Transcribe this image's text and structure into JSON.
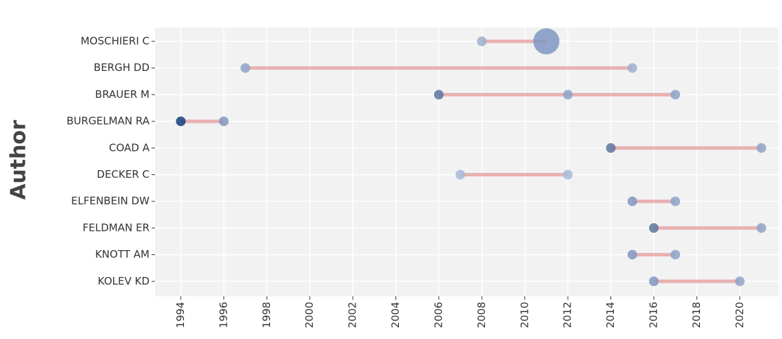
{
  "chart_data": {
    "type": "timeline",
    "y_label": "Author",
    "categories": [
      "MOSCHIERI C",
      "BERGH DD",
      "BRAUER M",
      "BURGELMAN RA",
      "COAD A",
      "DECKER C",
      "ELFENBEIN DW",
      "FELDMAN ER",
      "KNOTT AM",
      "KOLEV KD"
    ],
    "rows": [
      {
        "points": [
          {
            "year": 2008,
            "articles": 1,
            "color": "#9fb0cf"
          },
          {
            "year": 2011,
            "articles": 5,
            "color": "#7f98c2"
          }
        ]
      },
      {
        "points": [
          {
            "year": 1997,
            "articles": 1,
            "color": "#8fa3c8"
          },
          {
            "year": 2015,
            "articles": 1,
            "color": "#9fb0cf"
          }
        ]
      },
      {
        "points": [
          {
            "year": 2006,
            "articles": 1,
            "color": "#5e76a0"
          },
          {
            "year": 2012,
            "articles": 1,
            "color": "#8fa3c8"
          },
          {
            "year": 2017,
            "articles": 1,
            "color": "#8fa3c8"
          }
        ]
      },
      {
        "points": [
          {
            "year": 1994,
            "articles": 1,
            "color": "#163d7a"
          },
          {
            "year": 1996,
            "articles": 1,
            "color": "#8297bf"
          }
        ]
      },
      {
        "points": [
          {
            "year": 2014,
            "articles": 1,
            "color": "#5e76a0"
          },
          {
            "year": 2021,
            "articles": 1,
            "color": "#8fa3c8"
          }
        ]
      },
      {
        "points": [
          {
            "year": 2007,
            "articles": 1,
            "color": "#a9badb"
          },
          {
            "year": 2012,
            "articles": 1,
            "color": "#a9badb"
          }
        ]
      },
      {
        "points": [
          {
            "year": 2015,
            "articles": 1,
            "color": "#8297bf"
          },
          {
            "year": 2017,
            "articles": 1,
            "color": "#8fa3c8"
          }
        ]
      },
      {
        "points": [
          {
            "year": 2016,
            "articles": 1,
            "color": "#5e76a0"
          },
          {
            "year": 2021,
            "articles": 1,
            "color": "#8fa3c8"
          }
        ]
      },
      {
        "points": [
          {
            "year": 2015,
            "articles": 1,
            "color": "#8297bf"
          },
          {
            "year": 2017,
            "articles": 1,
            "color": "#8fa3c8"
          }
        ]
      },
      {
        "points": [
          {
            "year": 2016,
            "articles": 1,
            "color": "#8297bf"
          },
          {
            "year": 2020,
            "articles": 1,
            "color": "#8fa3c8"
          }
        ]
      }
    ],
    "line_color": "#e39a9a",
    "xlim": [
      1992.8,
      2021.8
    ],
    "xticks": [
      1994,
      1996,
      1998,
      2000,
      2002,
      2004,
      2006,
      2008,
      2010,
      2012,
      2014,
      2016,
      2018,
      2020
    ],
    "grid": true
  }
}
